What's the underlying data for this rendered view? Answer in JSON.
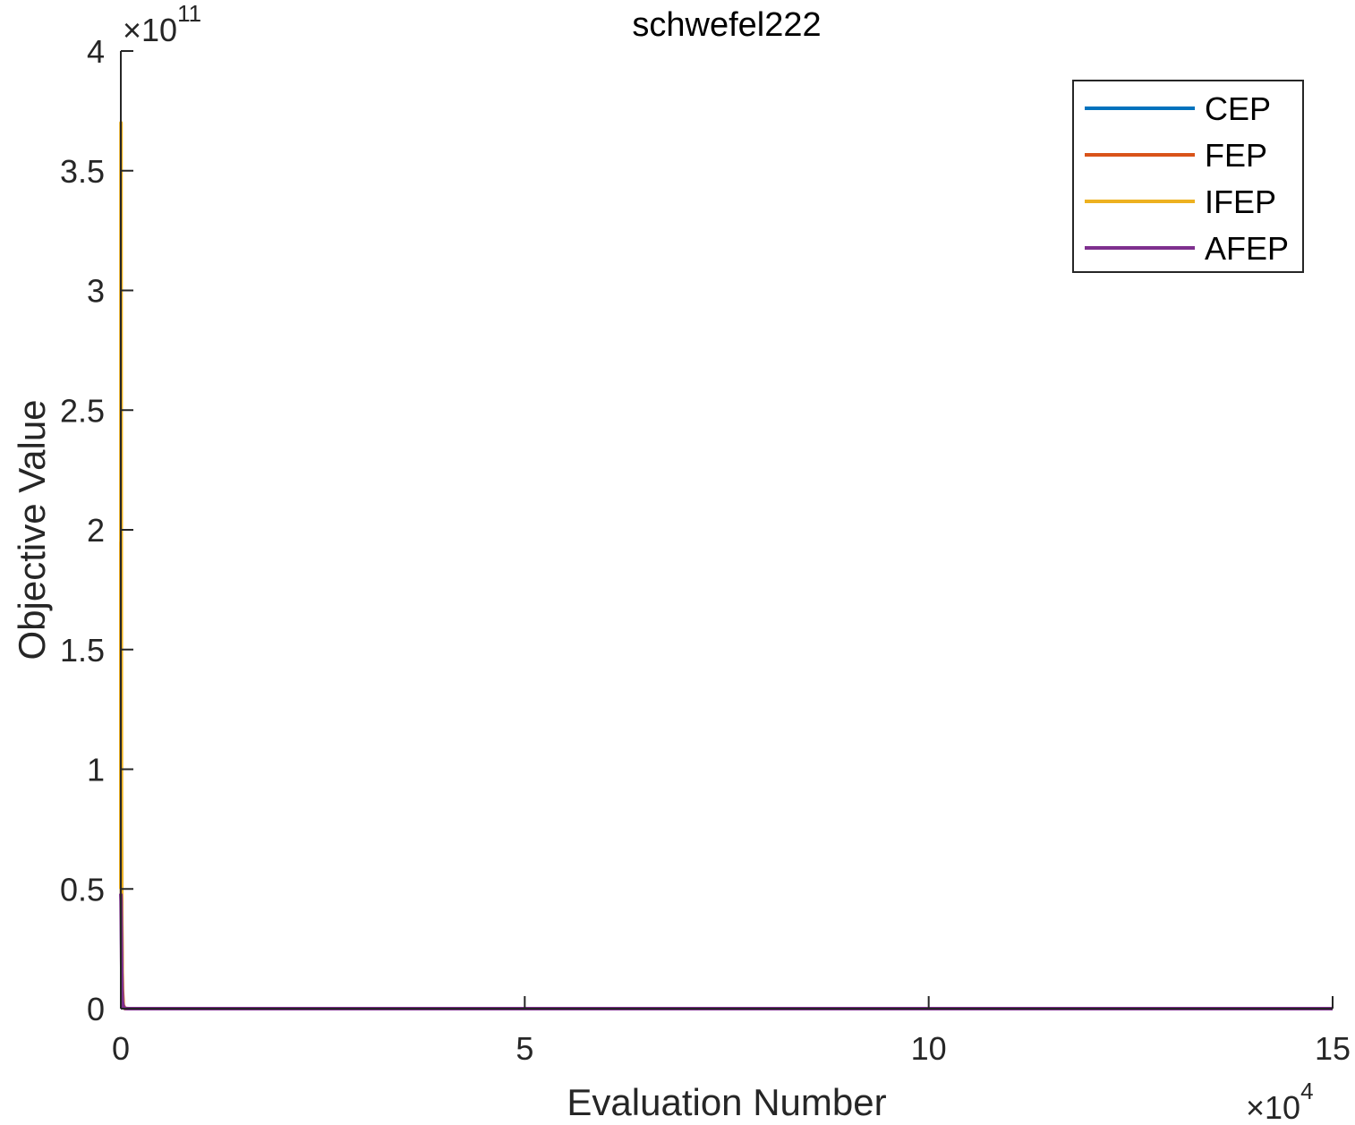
{
  "chart_data": {
    "type": "line",
    "title": "schwefel222",
    "xlabel": "Evaluation Number",
    "ylabel": "Objective Value",
    "x_multiplier": {
      "base": "×10",
      "exponent": "4"
    },
    "y_multiplier": {
      "base": "×10",
      "exponent": "11"
    },
    "xlim": [
      0,
      150000
    ],
    "ylim": [
      0,
      400000000000
    ],
    "x_ticks": [
      0,
      50000,
      100000,
      150000
    ],
    "x_tick_labels": [
      "0",
      "5",
      "10",
      "15"
    ],
    "y_ticks": [
      0,
      50000000000,
      100000000000,
      150000000000,
      200000000000,
      250000000000,
      300000000000,
      350000000000,
      400000000000
    ],
    "y_tick_labels": [
      "0",
      "0.5",
      "1",
      "1.5",
      "2",
      "2.5",
      "3",
      "3.5",
      "4"
    ],
    "grid": false,
    "legend_position": "top-right",
    "series": [
      {
        "name": "CEP",
        "color": "#0072BD",
        "x": [
          0,
          20,
          40,
          60,
          80,
          100,
          150,
          200,
          300,
          500,
          1000,
          150000
        ],
        "values": [
          130000000000,
          60000000000,
          150000000000,
          80000000000,
          50000000000,
          30000000000,
          10000000000,
          3000000000,
          500000000,
          50000000,
          0,
          0
        ]
      },
      {
        "name": "FEP",
        "color": "#D95319",
        "x": [
          0,
          20,
          40,
          60,
          80,
          100,
          150,
          200,
          300,
          500,
          1000,
          150000
        ],
        "values": [
          195000000000,
          120000000000,
          100000000000,
          70000000000,
          55000000000,
          40000000000,
          20000000000,
          8000000000,
          1500000000,
          100000000,
          0,
          0
        ]
      },
      {
        "name": "IFEP",
        "color": "#EDB120",
        "x": [
          0,
          20,
          40,
          60,
          80,
          100,
          150,
          200,
          300,
          500,
          1000,
          150000
        ],
        "values": [
          50000000000,
          370000000000,
          250000000000,
          150000000000,
          80000000000,
          48000000000,
          20000000000,
          5000000000,
          800000000,
          50000000,
          0,
          0
        ]
      },
      {
        "name": "AFEP",
        "color": "#7E2F8E",
        "x": [
          0,
          30,
          60,
          100,
          150,
          200,
          300,
          500,
          800,
          1500,
          150000
        ],
        "values": [
          48000000000,
          45000000000,
          35000000000,
          20000000000,
          8000000000,
          3000000000,
          800000000,
          100000000,
          10000000,
          0,
          0
        ]
      }
    ]
  }
}
